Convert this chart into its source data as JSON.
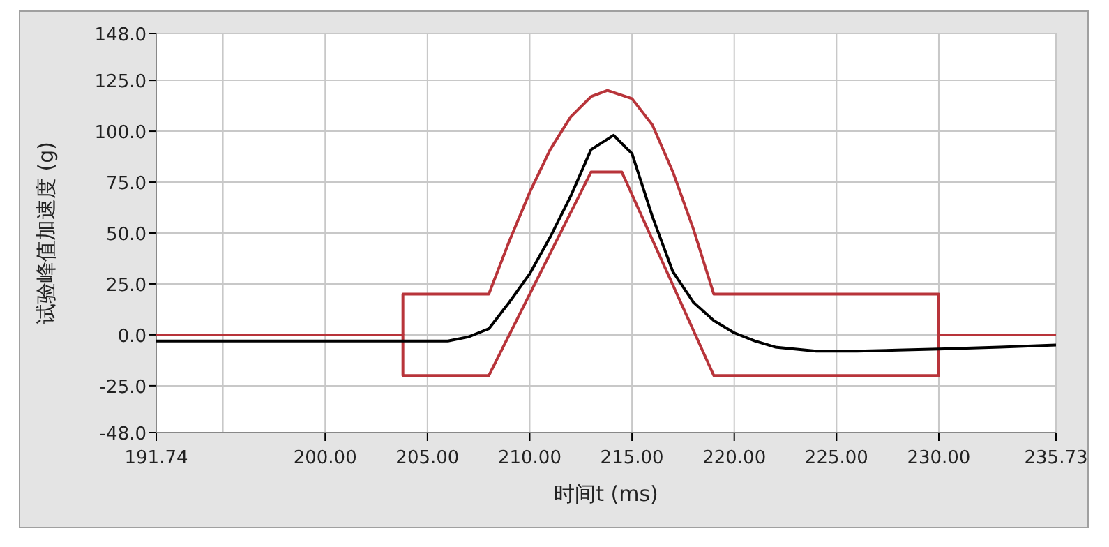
{
  "chart_data": {
    "type": "line",
    "xlabel": "时间t (ms)",
    "ylabel": "试验峰值加速度 (g)",
    "xlim": [
      191.74,
      235.73
    ],
    "ylim": [
      -48,
      148
    ],
    "xticks": [
      {
        "value": 191.74,
        "label": "191.74"
      },
      {
        "value": 195,
        "label": null
      },
      {
        "value": 200,
        "label": "200.00"
      },
      {
        "value": 205,
        "label": "205.00"
      },
      {
        "value": 210,
        "label": "210.00"
      },
      {
        "value": 215,
        "label": "215.00"
      },
      {
        "value": 220,
        "label": "220.00"
      },
      {
        "value": 225,
        "label": "225.00"
      },
      {
        "value": 230,
        "label": "230.00"
      },
      {
        "value": 235.73,
        "label": "235.73"
      }
    ],
    "yticks": [
      {
        "value": 148,
        "label": "148.0"
      },
      {
        "value": 125,
        "label": "125.0"
      },
      {
        "value": 100,
        "label": "100.0"
      },
      {
        "value": 75,
        "label": "75.0"
      },
      {
        "value": 50,
        "label": "50.0"
      },
      {
        "value": 25,
        "label": "25.0"
      },
      {
        "value": 0,
        "label": "0.0"
      },
      {
        "value": -25,
        "label": "-25.0"
      },
      {
        "value": -48,
        "label": "-48.0"
      }
    ],
    "grid": true,
    "marker": "none",
    "line_style": "solid",
    "series": [
      {
        "color": "#b8343a",
        "x": [
          191.74,
          203.8,
          203.8,
          208,
          213,
          214.5,
          219,
          230,
          230,
          235.73
        ],
        "values": [
          0,
          0,
          -20,
          -20,
          80,
          80,
          -20,
          -20,
          0,
          0
        ]
      },
      {
        "color": "#b8343a",
        "x": [
          203.8,
          203.8,
          208,
          209,
          210,
          211,
          212,
          213,
          213.8,
          215,
          216,
          217,
          218,
          219,
          230,
          230
        ],
        "values": [
          0,
          20,
          20,
          46,
          70,
          91,
          107,
          117,
          120,
          116,
          103,
          80,
          52,
          20,
          20,
          0
        ]
      },
      {
        "color": "#000000",
        "x": [
          191.74,
          195,
          198,
          201,
          204,
          206,
          207,
          207.5,
          208,
          209,
          210,
          211,
          212,
          213,
          214.1,
          215,
          216,
          217,
          218,
          219,
          220,
          221,
          222,
          224,
          226,
          228,
          230,
          233,
          235.73
        ],
        "values": [
          -3,
          -3,
          -3,
          -3,
          -3,
          -3,
          -1,
          1,
          3,
          16,
          30,
          48,
          68,
          91,
          98,
          89,
          58,
          31,
          16,
          7,
          1,
          -3,
          -6,
          -8,
          -8,
          -7.5,
          -7,
          -6,
          -5
        ]
      }
    ]
  }
}
